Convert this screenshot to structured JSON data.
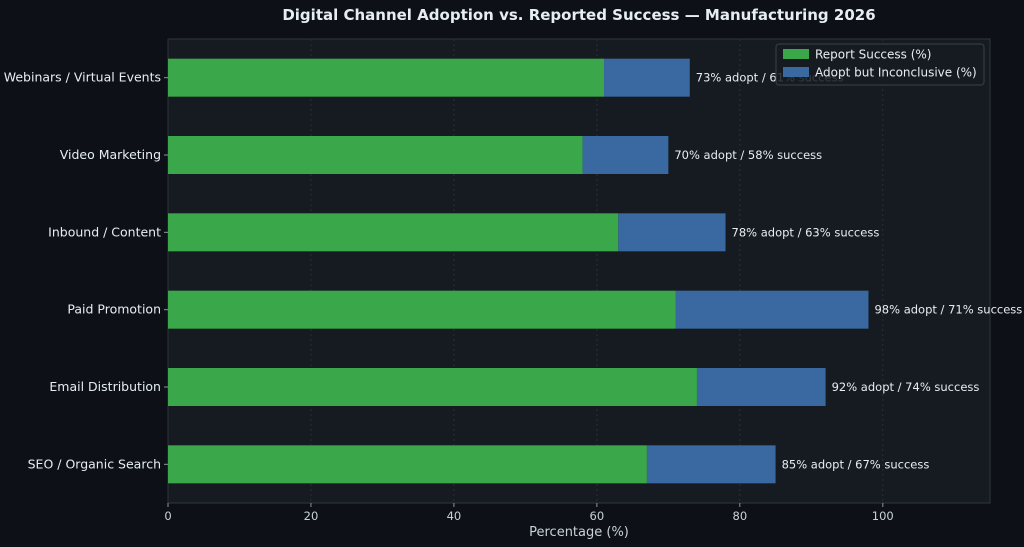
{
  "chart_data": {
    "type": "bar",
    "orientation": "horizontal",
    "stacked": true,
    "title": "Digital Channel Adoption vs. Reported Success — Manufacturing 2026",
    "xlabel": "Percentage (%)",
    "ylabel": "",
    "xlim": [
      0,
      115
    ],
    "xticks": [
      0,
      20,
      40,
      60,
      80,
      100
    ],
    "grid": "vertical",
    "legend_position": "top-right",
    "categories": [
      "SEO / Organic Search",
      "Email Distribution",
      "Paid Promotion",
      "Inbound / Content",
      "Video Marketing",
      "Webinars / Virtual Events"
    ],
    "series": [
      {
        "name": "Report Success (%)",
        "color": "#3aa84a",
        "values": [
          67,
          74,
          71,
          63,
          58,
          61
        ]
      },
      {
        "name": "Adopt but Inconclusive (%)",
        "color": "#3a68a0",
        "values": [
          18,
          18,
          27,
          15,
          12,
          12
        ]
      }
    ],
    "data_labels": [
      "85% adopt / 67% success",
      "92% adopt / 74% success",
      "98% adopt / 71% success",
      "78% adopt / 63% success",
      "70% adopt / 58% success",
      "73% adopt / 61% success"
    ]
  },
  "colors": {
    "page_background": "#0d1117",
    "plot_background": "#161b22",
    "grid": "#2a3038",
    "axis": "#8b949e"
  }
}
